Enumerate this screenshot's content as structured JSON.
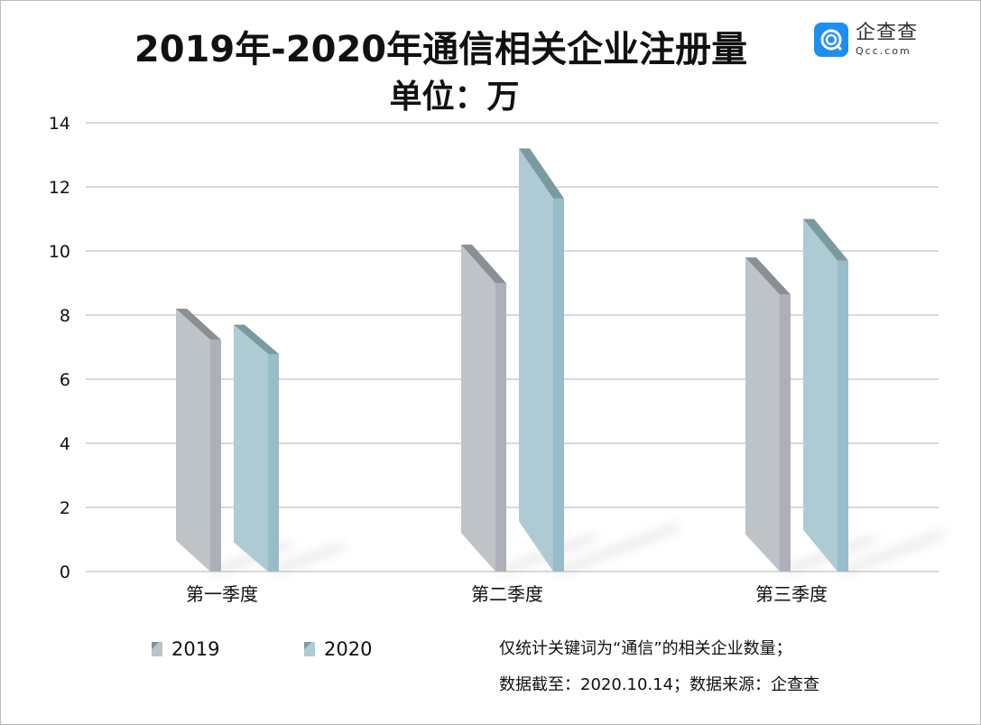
{
  "chart_data": {
    "type": "bar",
    "title": "2019年-2020年通信相关企业注册量",
    "subtitle": "单位：万",
    "categories": [
      "第一季度",
      "第二季度",
      "第三季度"
    ],
    "series": [
      {
        "name": "2019",
        "values": [
          8.2,
          10.2,
          9.8
        ],
        "color": "#bec3c8",
        "side": "#adb0b8",
        "top": "#8a8f94"
      },
      {
        "name": "2020",
        "values": [
          7.7,
          13.2,
          11.0
        ],
        "color": "#aecbd3",
        "side": "#98bcc8",
        "top": "#7a9aa2"
      }
    ],
    "yticks": [
      "0",
      "2",
      "4",
      "6",
      "8",
      "10",
      "12",
      "14"
    ],
    "ylim": [
      0,
      14
    ],
    "xlabel": "",
    "ylabel": "",
    "grid": true,
    "legend": "bottom-left"
  },
  "logo": {
    "cn": "企查查",
    "en": "Qcc.com"
  },
  "notes": {
    "line1": "仅统计关键词为“通信”的相关企业数量；",
    "line2": "数据截至：2020.10.14；数据来源：企查查"
  }
}
